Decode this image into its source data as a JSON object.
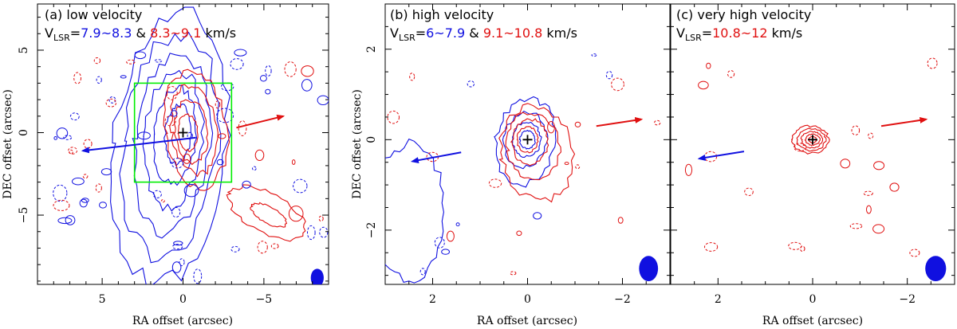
{
  "colors": {
    "blue": "#1010e0",
    "red": "#e01010",
    "green": "#00ee00",
    "frame": "#000000"
  },
  "chart_data": [
    {
      "type": "contour",
      "panel": "(a)",
      "title": "(a) low velocity",
      "vlsr_prefix": "V",
      "vlsr_sub": "LSR",
      "vlsr_eq": "=",
      "blue_range": "7.9~8.3",
      "amp": " & ",
      "red_range": "8.3~9.1",
      "unit": " km/s",
      "xlabel": "RA offset (arcsec)",
      "ylabel": "DEC offset (arcsec)",
      "xlim": [
        9,
        -9
      ],
      "ylim": [
        -9.2,
        7.8
      ],
      "xticks": [
        5,
        0,
        -5
      ],
      "xtick_labels": [
        "5",
        "0",
        "−5"
      ],
      "yticks": [
        5,
        0,
        -5
      ],
      "ytick_labels": [
        "5",
        "0",
        "−5"
      ],
      "source": {
        "x": 0,
        "y": 0
      },
      "box": {
        "x0": 3,
        "x1": -3,
        "y0": -3,
        "y1": 3
      },
      "red_arrow": {
        "from": [
          -3.3,
          0.3
        ],
        "to": [
          -6.2,
          1.0
        ]
      },
      "blue_arrow": {
        "from": [
          -0.8,
          -0.3
        ],
        "to": [
          6.2,
          -1.1
        ]
      },
      "beam": {
        "x": -8.3,
        "y": -8.8,
        "bmaj": 0.55,
        "bmin": 0.4
      },
      "blue_levels": [
        {
          "cx": 0.8,
          "cy": -1.0,
          "rx": 3.5,
          "ry": 8.2,
          "rot": 6
        },
        {
          "cx": 0.8,
          "cy": -0.8,
          "rx": 2.9,
          "ry": 6.8,
          "rot": 6
        },
        {
          "cx": 0.7,
          "cy": -0.6,
          "rx": 2.3,
          "ry": 5.4,
          "rot": 6
        },
        {
          "cx": 0.6,
          "cy": -0.4,
          "rx": 1.8,
          "ry": 4.1,
          "rot": 5
        },
        {
          "cx": 0.5,
          "cy": -0.2,
          "rx": 1.3,
          "ry": 2.9,
          "rot": 5
        },
        {
          "cx": 0.3,
          "cy": -0.1,
          "rx": 0.8,
          "ry": 1.8,
          "rot": 4
        }
      ],
      "red_levels": [
        {
          "cx": -0.8,
          "cy": 0.2,
          "rx": 1.9,
          "ry": 3.5,
          "rot": -8
        },
        {
          "cx": -0.7,
          "cy": 0.2,
          "rx": 1.4,
          "ry": 2.7,
          "rot": -8
        },
        {
          "cx": -0.5,
          "cy": 0.1,
          "rx": 1.0,
          "ry": 1.9,
          "rot": -6
        },
        {
          "cx": -0.3,
          "cy": 0.0,
          "rx": 0.6,
          "ry": 1.1,
          "rot": -4
        },
        {
          "cx": -5.2,
          "cy": -4.9,
          "rx": 2.6,
          "ry": 1.2,
          "rot": 28
        },
        {
          "cx": -5.3,
          "cy": -5.0,
          "rx": 1.2,
          "ry": 0.5,
          "rot": 28
        }
      ]
    },
    {
      "type": "contour",
      "panel": "(b)",
      "title": "(b) high velocity",
      "vlsr_prefix": "V",
      "vlsr_sub": "LSR",
      "vlsr_eq": "=",
      "blue_range": "6~7.9",
      "amp": " & ",
      "red_range": "9.1~10.8",
      "unit": " km/s",
      "xlabel": "RA offset (arcsec)",
      "ylabel": "DEC offset (arcsec)",
      "xlim": [
        3,
        -3
      ],
      "ylim": [
        -3.2,
        3.0
      ],
      "xticks": [
        2,
        0,
        -2
      ],
      "xtick_labels": [
        "2",
        "0",
        "−2"
      ],
      "yticks": [
        2,
        0,
        -2
      ],
      "ytick_labels": [
        "2",
        "0",
        "−2"
      ],
      "source": {
        "x": 0,
        "y": 0
      },
      "red_arrow": {
        "from": [
          -1.45,
          0.3
        ],
        "to": [
          -2.4,
          0.45
        ]
      },
      "blue_arrow": {
        "from": [
          1.4,
          -0.28
        ],
        "to": [
          2.43,
          -0.48
        ]
      },
      "beam": {
        "x": -2.55,
        "y": -2.85,
        "bmaj": 0.28,
        "bmin": 0.2
      },
      "blue_levels": [
        {
          "cx": 0.05,
          "cy": -0.05,
          "rx": 0.62,
          "ry": 0.95,
          "rot": 10
        },
        {
          "cx": 0.05,
          "cy": 0.0,
          "rx": 0.45,
          "ry": 0.6,
          "rot": 10
        },
        {
          "cx": 0.02,
          "cy": 0.0,
          "rx": 0.3,
          "ry": 0.38,
          "rot": 0
        },
        {
          "cx": 0.0,
          "cy": 0.0,
          "rx": 0.16,
          "ry": 0.2,
          "rot": 0
        },
        {
          "cx": 2.5,
          "cy": -1.6,
          "rx": 0.75,
          "ry": 1.5,
          "rot": 0
        }
      ],
      "red_levels": [
        {
          "cx": -0.2,
          "cy": -0.3,
          "rx": 0.75,
          "ry": 1.05,
          "rot": -10
        },
        {
          "cx": -0.12,
          "cy": -0.15,
          "rx": 0.55,
          "ry": 0.75,
          "rot": -10
        },
        {
          "cx": -0.05,
          "cy": -0.05,
          "rx": 0.38,
          "ry": 0.5,
          "rot": 0
        },
        {
          "cx": 0.0,
          "cy": 0.0,
          "rx": 0.22,
          "ry": 0.28,
          "rot": 0
        }
      ]
    },
    {
      "type": "contour",
      "panel": "(c)",
      "title": "(c) very high velocity",
      "vlsr_prefix": "V",
      "vlsr_sub": "LSR",
      "vlsr_eq": "=",
      "red_range": "10.8~12",
      "unit": " km/s",
      "xlabel": "RA offset (arcsec)",
      "xlim": [
        3,
        -3
      ],
      "ylim": [
        -3.2,
        3.0
      ],
      "xticks": [
        2,
        0,
        -2
      ],
      "xtick_labels": [
        "2",
        "0",
        "−2"
      ],
      "yticks": [
        2,
        0,
        -2
      ],
      "source": {
        "x": 0,
        "y": 0
      },
      "red_arrow": {
        "from": [
          -1.45,
          0.3
        ],
        "to": [
          -2.4,
          0.45
        ]
      },
      "blue_arrow": {
        "from": [
          1.45,
          -0.26
        ],
        "to": [
          2.4,
          -0.42
        ]
      },
      "beam": {
        "x": -2.6,
        "y": -2.85,
        "bmaj": 0.28,
        "bmin": 0.22
      },
      "blue_levels": [],
      "red_levels": [
        {
          "cx": 0.05,
          "cy": 0.0,
          "rx": 0.38,
          "ry": 0.3,
          "rot": 0
        },
        {
          "cx": 0.03,
          "cy": 0.0,
          "rx": 0.3,
          "ry": 0.24,
          "rot": 0
        },
        {
          "cx": 0.02,
          "cy": 0.0,
          "rx": 0.22,
          "ry": 0.18,
          "rot": 0
        },
        {
          "cx": 0.0,
          "cy": 0.0,
          "rx": 0.15,
          "ry": 0.12,
          "rot": 0
        },
        {
          "cx": 0.0,
          "cy": 0.0,
          "rx": 0.08,
          "ry": 0.07,
          "rot": 0
        }
      ]
    }
  ]
}
